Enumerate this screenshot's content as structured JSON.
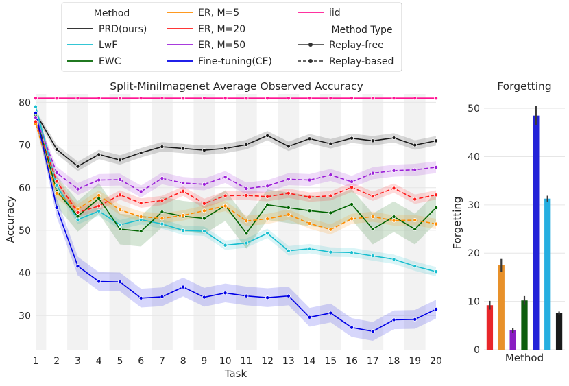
{
  "chart_data": [
    {
      "type": "line",
      "title": "Split-MiniImagenet Average Observed Accuracy",
      "xlabel": "Task",
      "ylabel": "Accuracy",
      "x": [
        1,
        2,
        3,
        4,
        5,
        6,
        7,
        8,
        9,
        10,
        11,
        12,
        13,
        14,
        15,
        16,
        17,
        18,
        19,
        20
      ],
      "xlim": [
        1,
        20
      ],
      "ylim": [
        22,
        82
      ],
      "yticks": [
        30,
        40,
        50,
        60,
        70,
        80
      ],
      "series": [
        {
          "name": "PRD(ours)",
          "color": "#1a1a1a",
          "dashed": false,
          "values": [
            77.5,
            69,
            65,
            67.8,
            66.5,
            68.2,
            69.6,
            69.2,
            68.8,
            69.2,
            70.1,
            72.2,
            69.7,
            71.5,
            70.3,
            71.6,
            71,
            71.7,
            70,
            71
          ]
        },
        {
          "name": "LwF",
          "color": "#17becf",
          "dashed": false,
          "values": [
            79,
            60.5,
            52.5,
            54.5,
            51.3,
            52.5,
            51.5,
            50,
            49.8,
            46.5,
            47,
            49.3,
            45.2,
            45.7,
            44.9,
            44.8,
            44,
            43.2,
            41.6,
            40.3
          ]
        },
        {
          "name": "EWC",
          "color": "#006400",
          "dashed": false,
          "values": [
            77,
            59.2,
            53.3,
            57.5,
            50.3,
            49.8,
            54.3,
            53.3,
            52.8,
            55.8,
            49.3,
            56,
            55.3,
            54.6,
            54.1,
            56.1,
            50.3,
            53.2,
            50.3,
            55.3
          ]
        },
        {
          "name": "ER, M=5",
          "color": "#ff8c00",
          "dashed": true,
          "values": [
            75,
            58.7,
            55,
            58.2,
            54.8,
            53.2,
            52.8,
            53.5,
            54.6,
            55.7,
            52.2,
            52.7,
            53.7,
            51.6,
            50.2,
            52.7,
            53.2,
            52.3,
            52.4,
            51.5
          ]
        },
        {
          "name": "ER, M=20",
          "color": "#ff1a1a",
          "dashed": true,
          "values": [
            75.5,
            61.5,
            54.2,
            55.7,
            58.3,
            56.4,
            57,
            59.2,
            56.3,
            58.1,
            58.2,
            57.9,
            58.7,
            57.8,
            58.1,
            60.1,
            58,
            59.9,
            57.3,
            58.3
          ]
        },
        {
          "name": "ER, M=50",
          "color": "#9b1fd8",
          "dashed": true,
          "values": [
            76.5,
            63.5,
            59.7,
            61.8,
            61.9,
            59.1,
            62.2,
            61.1,
            60.8,
            62.5,
            59.8,
            60.4,
            62,
            61.8,
            63,
            61.4,
            63.4,
            64,
            64.2,
            64.8
          ]
        },
        {
          "name": "Fine-tuning(CE)",
          "color": "#0000e6",
          "dashed": false,
          "values": [
            77.5,
            55.3,
            41.6,
            38,
            37.9,
            34.1,
            34.4,
            36.7,
            34.3,
            35.3,
            34.6,
            34.2,
            34.6,
            29.6,
            30.6,
            27.2,
            26.3,
            29,
            29.1,
            31.5
          ]
        },
        {
          "name": "iid",
          "color": "#ff1493",
          "dashed": false,
          "values": [
            81,
            81,
            81,
            81,
            81,
            81,
            81,
            81,
            81,
            81,
            81,
            81,
            81,
            81,
            81,
            81,
            81,
            81,
            81,
            81
          ]
        }
      ]
    },
    {
      "type": "bar",
      "title": "Forgetting",
      "xlabel": "Method",
      "ylabel": "Forgetting",
      "ylim": [
        0,
        53
      ],
      "yticks": [
        0,
        10,
        20,
        30,
        40,
        50
      ],
      "bars": [
        {
          "name": "ER, M=20",
          "value": 9.2,
          "err": 0.9,
          "color": "#e8262a"
        },
        {
          "name": "ER, M=5",
          "value": 17.5,
          "err": 1.3,
          "color": "#e8912a"
        },
        {
          "name": "ER, M=50",
          "value": 4.0,
          "err": 0.5,
          "color": "#8a1ec2"
        },
        {
          "name": "EWC",
          "value": 10.2,
          "err": 0.9,
          "color": "#0d5c0d"
        },
        {
          "name": "Fine-tuning(CE)",
          "value": 48.5,
          "err": 2.0,
          "color": "#2323d8"
        },
        {
          "name": "LwF",
          "value": 31.3,
          "err": 0.6,
          "color": "#26aee0"
        },
        {
          "name": "PRD(ours)",
          "value": 7.6,
          "err": 0.3,
          "color": "#1a1a1a"
        }
      ]
    }
  ],
  "legend": {
    "method_header": "Method",
    "type_header": "Method Type",
    "types": [
      {
        "name": "Replay-free",
        "dashed": false
      },
      {
        "name": "Replay-based",
        "dashed": true
      }
    ]
  }
}
